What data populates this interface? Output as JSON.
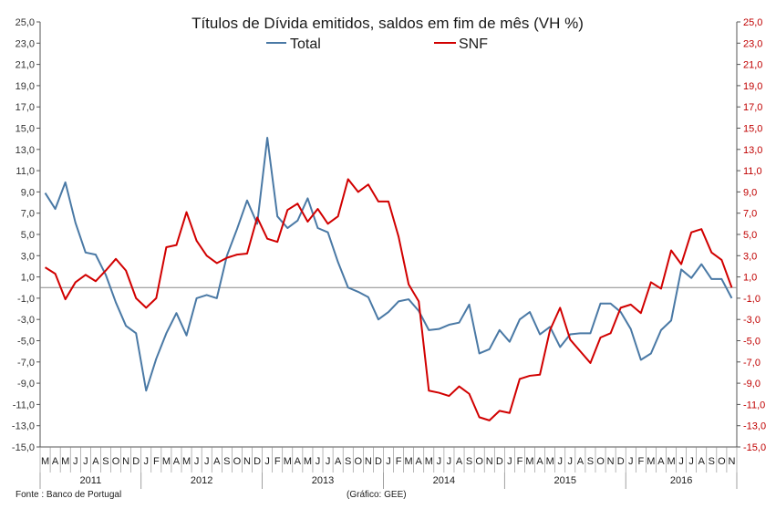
{
  "chart_data": {
    "type": "line",
    "title": "Títulos de Dívida emitidos, saldos em fim de mês  (VH %)",
    "source": "Fonte : Banco de Portugal",
    "credit": "(Gráfico: GEE)",
    "ylim": [
      -15,
      25
    ],
    "y_ticks": [
      "25,0",
      "23,0",
      "21,0",
      "19,0",
      "17,0",
      "15,0",
      "13,0",
      "11,0",
      "9,0",
      "7,0",
      "5,0",
      "3,0",
      "1,0",
      "-1,0",
      "-3,0",
      "-5,0",
      "-7,0",
      "-9,0",
      "-11,0",
      "-13,0",
      "-15,0"
    ],
    "y_tick_values": [
      25,
      23,
      21,
      19,
      17,
      15,
      13,
      11,
      9,
      7,
      5,
      3,
      1,
      -1,
      -3,
      -5,
      -7,
      -9,
      -11,
      -13,
      -15
    ],
    "months": [
      "M",
      "A",
      "M",
      "J",
      "J",
      "A",
      "S",
      "O",
      "N",
      "D",
      "J",
      "F",
      "M",
      "A",
      "M",
      "J",
      "J",
      "A",
      "S",
      "O",
      "N",
      "D",
      "J",
      "F",
      "M",
      "A",
      "M",
      "J",
      "J",
      "A",
      "S",
      "O",
      "N",
      "D",
      "J",
      "F",
      "M",
      "A",
      "M",
      "J",
      "J",
      "A",
      "S",
      "O",
      "N",
      "D",
      "J",
      "F",
      "M",
      "A",
      "M",
      "J",
      "J",
      "A",
      "S",
      "O",
      "N",
      "D",
      "J",
      "F",
      "M",
      "A",
      "M",
      "J",
      "J",
      "A",
      "S",
      "O",
      "N"
    ],
    "years": [
      {
        "label": "2011",
        "start": 0,
        "count": 10
      },
      {
        "label": "2012",
        "start": 10,
        "count": 12
      },
      {
        "label": "2013",
        "start": 22,
        "count": 12
      },
      {
        "label": "2014",
        "start": 34,
        "count": 12
      },
      {
        "label": "2015",
        "start": 46,
        "count": 12
      },
      {
        "label": "2016",
        "start": 58,
        "count": 11
      }
    ],
    "series": [
      {
        "name": "Total",
        "color": "#4a79a5",
        "values": [
          8.9,
          7.4,
          9.9,
          6.1,
          3.3,
          3.1,
          1.2,
          -1.4,
          -3.6,
          -4.3,
          -9.7,
          -6.7,
          -4.3,
          -2.4,
          -4.5,
          -1.0,
          -0.7,
          -1.0,
          3.0,
          5.5,
          8.2,
          6.0,
          14.1,
          6.7,
          5.6,
          6.3,
          8.4,
          5.6,
          5.2,
          2.4,
          0.0,
          -0.4,
          -0.9,
          -3.0,
          -2.3,
          -1.3,
          -1.1,
          -2.2,
          -4.0,
          -3.9,
          -3.5,
          -3.3,
          -1.6,
          -6.2,
          -5.8,
          -4.0,
          -5.1,
          -3.0,
          -2.3,
          -4.4,
          -3.7,
          -5.6,
          -4.4,
          -4.3,
          -4.3,
          -1.5,
          -1.5,
          -2.3,
          -3.9,
          -6.8,
          -6.2,
          -4.0,
          -3.1,
          1.7,
          0.9,
          2.2,
          0.8,
          0.8,
          -1.0
        ]
      },
      {
        "name": "SNF",
        "color": "#d10000",
        "values": [
          1.9,
          1.3,
          -1.1,
          0.5,
          1.2,
          0.6,
          1.6,
          2.7,
          1.6,
          -1.0,
          -1.9,
          -1.0,
          3.8,
          4.0,
          7.1,
          4.4,
          3.0,
          2.3,
          2.8,
          3.1,
          3.2,
          6.6,
          4.6,
          4.3,
          7.3,
          7.9,
          6.2,
          7.4,
          6.0,
          6.7,
          10.2,
          9.0,
          9.7,
          8.1,
          8.1,
          4.8,
          0.3,
          -1.3,
          -9.7,
          -9.9,
          -10.2,
          -9.3,
          -10.0,
          -12.2,
          -12.5,
          -11.6,
          -11.8,
          -8.6,
          -8.3,
          -8.2,
          -4.0,
          -1.9,
          -4.9,
          -6.0,
          -7.1,
          -4.7,
          -4.3,
          -1.9,
          -1.6,
          -2.4,
          0.5,
          -0.1,
          3.5,
          2.2,
          5.2,
          5.5,
          3.3,
          2.6,
          0.0
        ]
      }
    ]
  }
}
